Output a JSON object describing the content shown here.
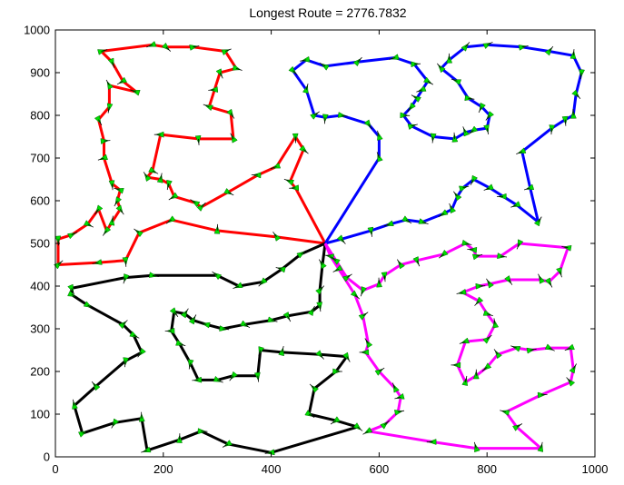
{
  "chart_data": {
    "type": "line",
    "title": "Longest Route = 2776.7832",
    "xlabel": "",
    "ylabel": "",
    "xlim": [
      0,
      1000
    ],
    "ylim": [
      0,
      1000
    ],
    "xticks": [
      "0",
      "200",
      "400",
      "600",
      "800",
      "1000"
    ],
    "yticks": [
      "0",
      "100",
      "200",
      "300",
      "400",
      "500",
      "600",
      "700",
      "800",
      "900",
      "1000"
    ],
    "grid": false,
    "legend": "none",
    "depot": [
      500,
      500
    ],
    "colors": {
      "red": "#ff0000",
      "blue": "#0000ff",
      "black": "#000000",
      "magenta": "#ff00ff",
      "marker": "#00dd00"
    },
    "series": [
      {
        "color": "red",
        "points": [
          [
            500,
            500
          ],
          [
            445,
            630
          ],
          [
            435,
            645
          ],
          [
            460,
            720
          ],
          [
            445,
            750
          ],
          [
            410,
            680
          ],
          [
            375,
            660
          ],
          [
            320,
            620
          ],
          [
            270,
            585
          ],
          [
            260,
            595
          ],
          [
            220,
            610
          ],
          [
            210,
            640
          ],
          [
            195,
            650
          ],
          [
            170,
            655
          ],
          [
            180,
            670
          ],
          [
            195,
            755
          ],
          [
            265,
            745
          ],
          [
            330,
            745
          ],
          [
            325,
            805
          ],
          [
            285,
            820
          ],
          [
            295,
            860
          ],
          [
            305,
            900
          ],
          [
            335,
            910
          ],
          [
            315,
            950
          ],
          [
            255,
            960
          ],
          [
            205,
            960
          ],
          [
            180,
            965
          ],
          [
            85,
            950
          ],
          [
            105,
            925
          ],
          [
            125,
            880
          ],
          [
            150,
            855
          ],
          [
            100,
            870
          ],
          [
            100,
            820
          ],
          [
            80,
            790
          ],
          [
            90,
            740
          ],
          [
            90,
            700
          ],
          [
            105,
            640
          ],
          [
            120,
            625
          ],
          [
            115,
            600
          ],
          [
            120,
            580
          ],
          [
            105,
            550
          ],
          [
            95,
            530
          ],
          [
            80,
            580
          ],
          [
            60,
            545
          ],
          [
            30,
            520
          ],
          [
            5,
            510
          ],
          [
            5,
            450
          ],
          [
            80,
            455
          ],
          [
            130,
            460
          ],
          [
            155,
            525
          ],
          [
            215,
            555
          ],
          [
            300,
            530
          ],
          [
            410,
            515
          ],
          [
            500,
            500
          ]
        ]
      },
      {
        "color": "blue",
        "points": [
          [
            500,
            500
          ],
          [
            530,
            510
          ],
          [
            585,
            530
          ],
          [
            620,
            545
          ],
          [
            650,
            555
          ],
          [
            680,
            550
          ],
          [
            720,
            570
          ],
          [
            735,
            580
          ],
          [
            745,
            610
          ],
          [
            755,
            630
          ],
          [
            775,
            650
          ],
          [
            805,
            630
          ],
          [
            830,
            610
          ],
          [
            855,
            590
          ],
          [
            895,
            550
          ],
          [
            880,
            630
          ],
          [
            865,
            715
          ],
          [
            920,
            770
          ],
          [
            945,
            790
          ],
          [
            960,
            800
          ],
          [
            965,
            850
          ],
          [
            975,
            900
          ],
          [
            960,
            940
          ],
          [
            915,
            950
          ],
          [
            865,
            960
          ],
          [
            800,
            965
          ],
          [
            760,
            960
          ],
          [
            730,
            930
          ],
          [
            715,
            910
          ],
          [
            745,
            880
          ],
          [
            765,
            840
          ],
          [
            790,
            820
          ],
          [
            805,
            800
          ],
          [
            800,
            770
          ],
          [
            775,
            765
          ],
          [
            760,
            760
          ],
          [
            740,
            745
          ],
          [
            700,
            750
          ],
          [
            660,
            775
          ],
          [
            645,
            800
          ],
          [
            660,
            820
          ],
          [
            670,
            840
          ],
          [
            680,
            860
          ],
          [
            690,
            880
          ],
          [
            665,
            920
          ],
          [
            630,
            935
          ],
          [
            560,
            925
          ],
          [
            500,
            915
          ],
          [
            465,
            930
          ],
          [
            440,
            905
          ],
          [
            465,
            860
          ],
          [
            480,
            800
          ],
          [
            500,
            795
          ],
          [
            530,
            800
          ],
          [
            580,
            780
          ],
          [
            600,
            750
          ],
          [
            600,
            700
          ],
          [
            500,
            500
          ]
        ]
      },
      {
        "color": "black",
        "points": [
          [
            500,
            500
          ],
          [
            495,
            450
          ],
          [
            490,
            390
          ],
          [
            490,
            355
          ],
          [
            475,
            340
          ],
          [
            430,
            330
          ],
          [
            400,
            320
          ],
          [
            350,
            310
          ],
          [
            310,
            300
          ],
          [
            280,
            310
          ],
          [
            255,
            320
          ],
          [
            240,
            335
          ],
          [
            220,
            340
          ],
          [
            215,
            295
          ],
          [
            230,
            265
          ],
          [
            250,
            220
          ],
          [
            265,
            180
          ],
          [
            300,
            180
          ],
          [
            330,
            190
          ],
          [
            375,
            190
          ],
          [
            380,
            250
          ],
          [
            420,
            245
          ],
          [
            490,
            240
          ],
          [
            540,
            235
          ],
          [
            520,
            200
          ],
          [
            480,
            160
          ],
          [
            470,
            100
          ],
          [
            520,
            85
          ],
          [
            560,
            70
          ],
          [
            400,
            10
          ],
          [
            320,
            30
          ],
          [
            270,
            60
          ],
          [
            230,
            40
          ],
          [
            170,
            15
          ],
          [
            160,
            90
          ],
          [
            110,
            80
          ],
          [
            50,
            55
          ],
          [
            35,
            120
          ],
          [
            75,
            165
          ],
          [
            130,
            225
          ],
          [
            160,
            245
          ],
          [
            145,
            285
          ],
          [
            125,
            310
          ],
          [
            60,
            355
          ],
          [
            30,
            380
          ],
          [
            30,
            395
          ],
          [
            130,
            420
          ],
          [
            180,
            425
          ],
          [
            300,
            425
          ],
          [
            340,
            400
          ],
          [
            385,
            410
          ],
          [
            420,
            440
          ],
          [
            455,
            475
          ],
          [
            500,
            500
          ]
        ]
      },
      {
        "color": "magenta",
        "points": [
          [
            500,
            500
          ],
          [
            510,
            470
          ],
          [
            525,
            440
          ],
          [
            555,
            380
          ],
          [
            570,
            330
          ],
          [
            580,
            265
          ],
          [
            575,
            245
          ],
          [
            600,
            200
          ],
          [
            630,
            160
          ],
          [
            640,
            140
          ],
          [
            635,
            105
          ],
          [
            610,
            75
          ],
          [
            580,
            60
          ],
          [
            700,
            35
          ],
          [
            780,
            20
          ],
          [
            900,
            20
          ],
          [
            855,
            70
          ],
          [
            835,
            105
          ],
          [
            900,
            145
          ],
          [
            955,
            175
          ],
          [
            960,
            205
          ],
          [
            955,
            255
          ],
          [
            915,
            255
          ],
          [
            880,
            250
          ],
          [
            855,
            255
          ],
          [
            820,
            240
          ],
          [
            800,
            210
          ],
          [
            780,
            190
          ],
          [
            760,
            175
          ],
          [
            745,
            215
          ],
          [
            760,
            270
          ],
          [
            800,
            275
          ],
          [
            815,
            310
          ],
          [
            800,
            335
          ],
          [
            785,
            365
          ],
          [
            755,
            385
          ],
          [
            785,
            400
          ],
          [
            805,
            405
          ],
          [
            840,
            415
          ],
          [
            900,
            415
          ],
          [
            915,
            410
          ],
          [
            935,
            435
          ],
          [
            950,
            490
          ],
          [
            860,
            500
          ],
          [
            825,
            470
          ],
          [
            780,
            470
          ],
          [
            775,
            485
          ],
          [
            760,
            500
          ],
          [
            720,
            475
          ],
          [
            670,
            460
          ],
          [
            640,
            450
          ],
          [
            610,
            425
          ],
          [
            600,
            405
          ],
          [
            570,
            390
          ],
          [
            540,
            420
          ],
          [
            520,
            460
          ],
          [
            500,
            500
          ]
        ]
      }
    ]
  }
}
